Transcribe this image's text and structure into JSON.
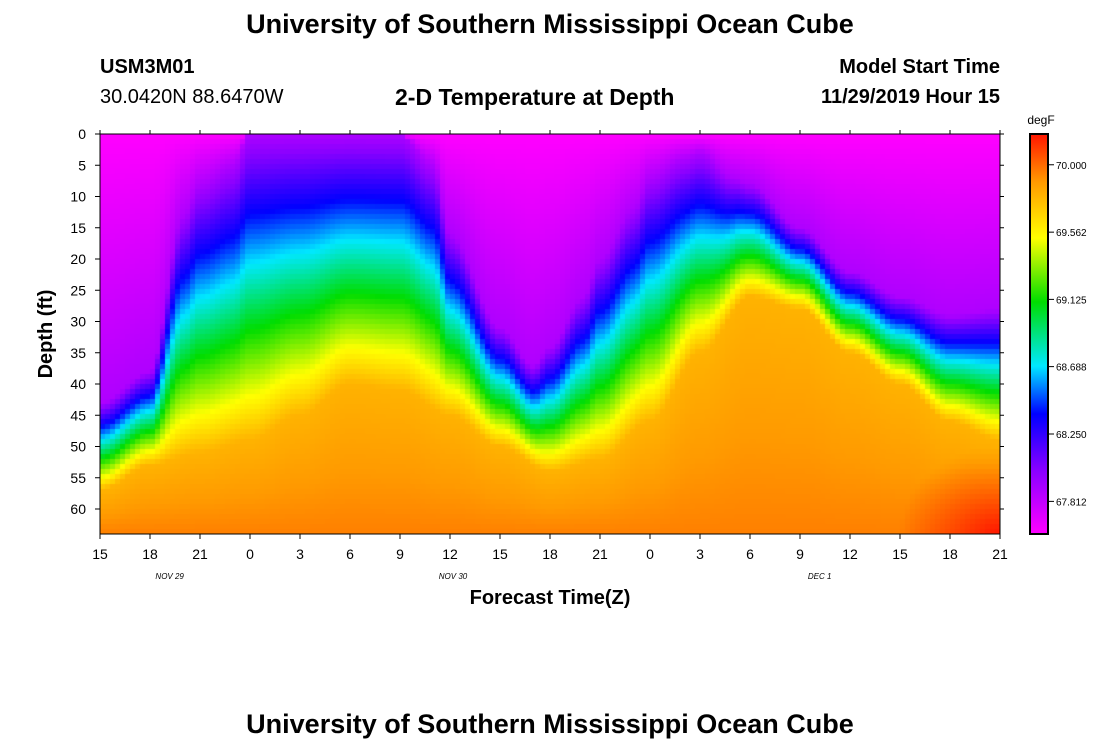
{
  "header": {
    "title": "University of Southern Mississippi Ocean Cube",
    "station_id": "USM3M01",
    "location": "30.0420N 88.6470W",
    "plot_subtitle": "2-D Temperature at Depth",
    "model_start_label": "Model Start Time",
    "model_start_value": "11/29/2019 Hour 15"
  },
  "footer": {
    "title": "University of Southern Mississippi Ocean Cube"
  },
  "colors": {
    "background": "#ffffff",
    "text": "#000000"
  },
  "chart_data": {
    "type": "heatmap",
    "title": "2-D Temperature at Depth",
    "xlabel": "Forecast Time(Z)",
    "ylabel": "Depth (ft)",
    "units": "degF",
    "x_hours": [
      15,
      18,
      21,
      24,
      27,
      30,
      33,
      36,
      39,
      42,
      45,
      48,
      51,
      54,
      57,
      60,
      63,
      66,
      69
    ],
    "x_tick_labels": [
      "15",
      "18",
      "21",
      "0",
      "3",
      "6",
      "9",
      "12",
      "15",
      "18",
      "21",
      "0",
      "3",
      "6",
      "9",
      "12",
      "15",
      "18",
      "21"
    ],
    "date_labels": [
      {
        "hour": 19,
        "text": "NOV 29"
      },
      {
        "hour": 36,
        "text": "NOV 30"
      },
      {
        "hour": 58,
        "text": "DEC 1"
      }
    ],
    "y_ticks": [
      0,
      5,
      10,
      15,
      20,
      25,
      30,
      35,
      40,
      45,
      50,
      55,
      60
    ],
    "ylim": [
      0,
      64
    ],
    "colorbar": {
      "label": "degF",
      "range": [
        67.6,
        70.2
      ],
      "tick_values": [
        70.0,
        69.562,
        69.125,
        68.688,
        68.25,
        67.812
      ],
      "tick_labels": [
        "70.000",
        "69.562",
        "69.125",
        "68.688",
        "68.250",
        "67.812"
      ]
    },
    "cold_layer_bottom_ft": {
      "hours": [
        15,
        18,
        20,
        21,
        23,
        24,
        26,
        27,
        28,
        30,
        33,
        35,
        36,
        39,
        41,
        42,
        44,
        45,
        47,
        48,
        50,
        51,
        53,
        54,
        57,
        60,
        63,
        66,
        69
      ],
      "depth": [
        43,
        38,
        13,
        8,
        5,
        0,
        0,
        0,
        0,
        0,
        0,
        5,
        16,
        31,
        37,
        34,
        26,
        20,
        12,
        7,
        4,
        3,
        7,
        8,
        15,
        22,
        26,
        29,
        28
      ]
    },
    "warm_water_top_ft": {
      "hours": [
        15,
        18,
        21,
        24,
        27,
        30,
        33,
        36,
        39,
        42,
        45,
        48,
        51,
        54,
        57,
        60,
        63,
        66,
        69
      ],
      "depth": [
        57,
        53,
        51,
        49,
        45,
        40,
        41,
        45,
        50,
        54,
        52,
        46,
        35,
        26,
        28,
        35,
        40,
        46,
        49
      ]
    },
    "surface_temp": 67.6,
    "bottom_temp": 69.95,
    "hot_corner": {
      "hour": 69,
      "depth": 64,
      "temp": 70.2
    }
  }
}
